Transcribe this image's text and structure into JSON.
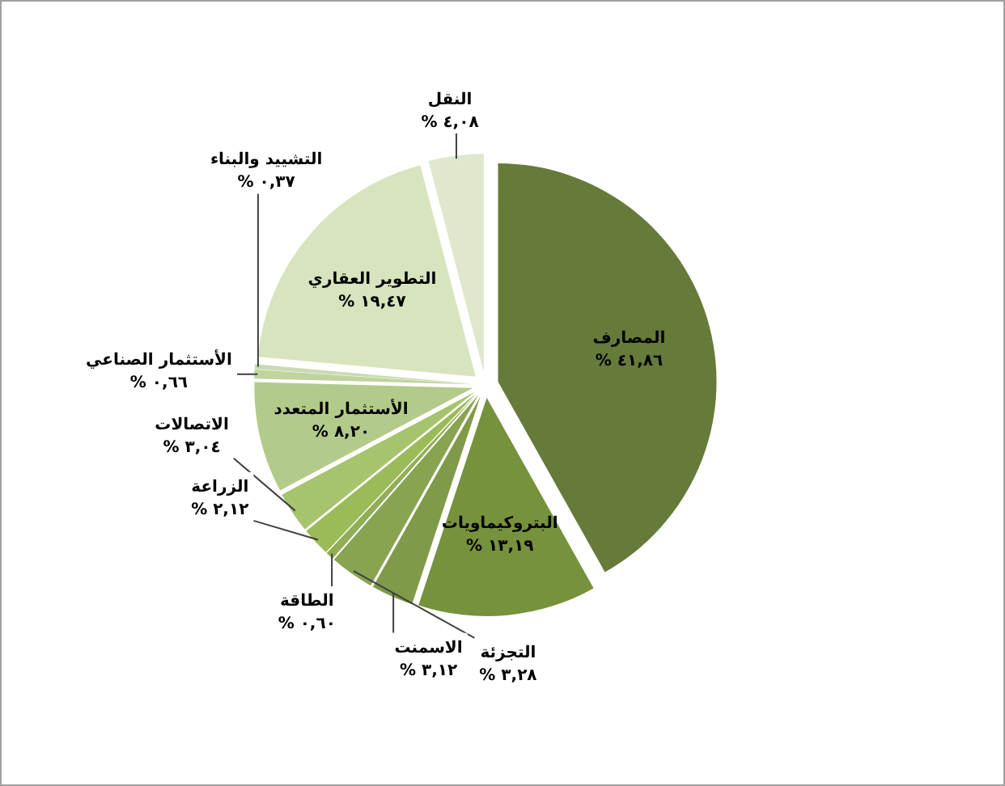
{
  "chart_data": {
    "type": "pie",
    "categories": [
      "المصارف",
      "البتروكيماويات",
      "الاسمنت",
      "التجزئة",
      "الطاقة",
      "الزراعة",
      "الاتصالات",
      "الأستثمار المتعدد",
      "الأستثمار الصناعي",
      "التشييد والبناء",
      "التطوير العقاري",
      "النقل"
    ],
    "values": [
      41.86,
      13.19,
      3.12,
      3.28,
      0.6,
      2.12,
      3.04,
      8.2,
      0.66,
      0.37,
      19.47,
      4.08
    ],
    "value_labels": [
      "٤١,٨٦ %",
      "١٣,١٩ %",
      "٣,١٢ %",
      "٣,٢٨ %",
      "٠,٦٠ %",
      "٢,١٢ %",
      "٣,٠٤ %",
      "٨,٢٠ %",
      "٠,٦٦ %",
      "٠,٣٧ %",
      "١٩,٤٧ %",
      "٤,٠٨ %"
    ],
    "colors": [
      "#667a3a",
      "#76923c",
      "#7f9a48",
      "#88a450",
      "#91ae56",
      "#9bbb59",
      "#a6c46e",
      "#b3cb8a",
      "#c0d49d",
      "#c9dbb0",
      "#d7e4bd",
      "#dfe8cd"
    ]
  }
}
